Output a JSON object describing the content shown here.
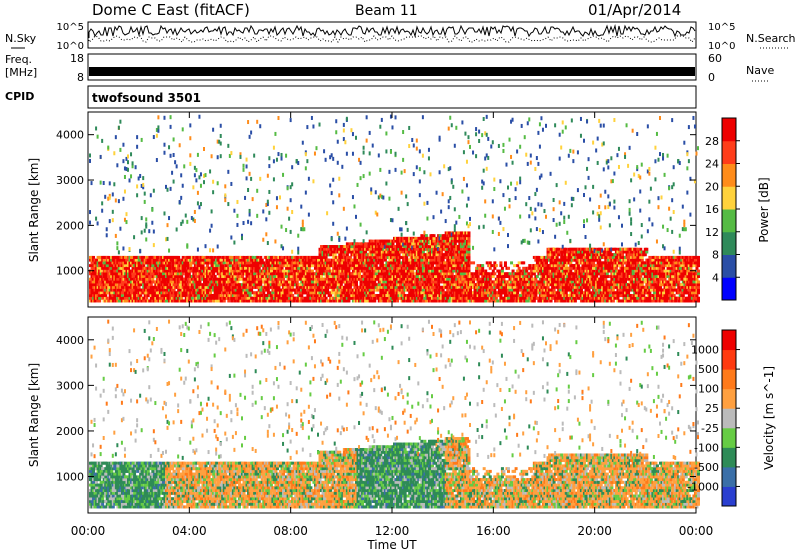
{
  "header": {
    "station": "Dome C East (fitACF)",
    "beam": "Beam 11",
    "date": "01/Apr/2014"
  },
  "panels": {
    "nsky": {
      "left_label": "N.Sky",
      "right_label": "N.Search",
      "left_ticks": [
        "10^5",
        "10^0"
      ],
      "right_ticks": [
        "10^5",
        "10^0"
      ]
    },
    "freq": {
      "left_label": "Freq.",
      "unit_label": "[MHz]",
      "right_label": "Nave",
      "left_ticks": [
        "18",
        "8"
      ],
      "right_ticks": [
        "60",
        "0"
      ]
    },
    "cpid": {
      "label": "CPID",
      "value": "twofsound 3501"
    }
  },
  "chart_data": [
    {
      "type": "heatmap",
      "title": "",
      "ylabel": "Slant Range [km]",
      "xlabel": "Time UT",
      "x_ticks": [
        "00:00",
        "04:00",
        "08:00",
        "12:00",
        "16:00",
        "20:00",
        "00:00"
      ],
      "y_ticks": [
        "1000",
        "2000",
        "3000",
        "4000"
      ],
      "xlim_hours": [
        0,
        24
      ],
      "ylim_km": [
        200,
        4500
      ],
      "colorbar": {
        "label": "Power [dB]",
        "ticks": [
          "28",
          "24",
          "20",
          "16",
          "12",
          "8",
          "4"
        ],
        "colors": [
          "#0000ff",
          "#2a4ea6",
          "#2f8a5a",
          "#55bb44",
          "#ffd23c",
          "#ff8c1a",
          "#ff3d1a",
          "#ee0000"
        ]
      }
    },
    {
      "type": "heatmap",
      "title": "",
      "ylabel": "Slant Range [km]",
      "xlabel": "Time UT",
      "x_ticks": [
        "00:00",
        "04:00",
        "08:00",
        "12:00",
        "16:00",
        "20:00",
        "00:00"
      ],
      "y_ticks": [
        "1000",
        "2000",
        "3000",
        "4000"
      ],
      "xlim_hours": [
        0,
        24
      ],
      "ylim_km": [
        200,
        4500
      ],
      "colorbar": {
        "label": "Velocity [m s^-1]",
        "ticks": [
          "1000",
          "500",
          "100",
          "25",
          "-25",
          "-100",
          "-500",
          "-1000"
        ],
        "colors": [
          "#2a3fd0",
          "#3a6fa8",
          "#2e8b57",
          "#66cc44",
          "#bbbbbb",
          "#ffa040",
          "#ff7a1a",
          "#ff3a10",
          "#ee0000"
        ]
      }
    }
  ],
  "footer": {
    "time_label": "Time UT"
  }
}
